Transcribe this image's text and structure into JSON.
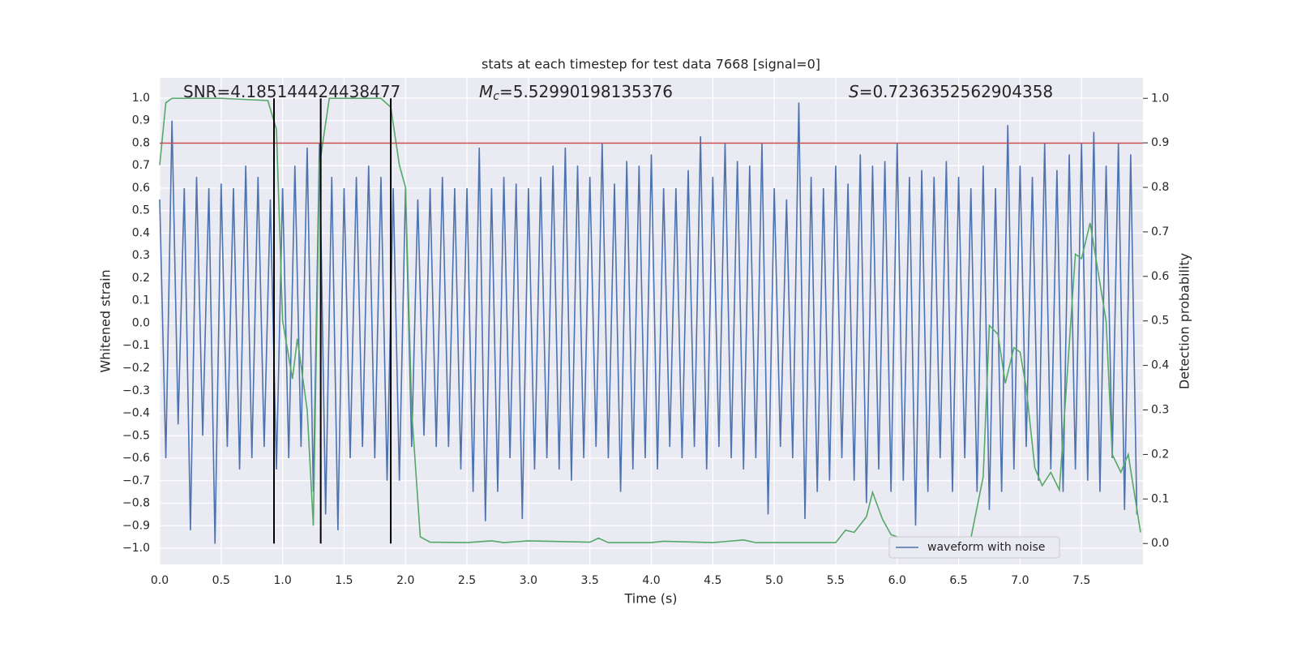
{
  "chart_data": {
    "type": "line",
    "title": "stats at each timestep for test data 7668 [signal=0]",
    "x_label": "Time (s)",
    "y_label": "Whitened strain",
    "y2_label": "Detection probability",
    "annotations": [
      {
        "text": "SNR=4.185144424438477"
      },
      {
        "symbol": "M",
        "subscript": "c",
        "text": "=5.52990198135376"
      },
      {
        "symbol": "S",
        "text": "=0.7236352562904358"
      }
    ],
    "xlim": [
      0,
      8.0
    ],
    "xticks": [
      {
        "value": 0,
        "label": "0.0"
      },
      0.5,
      {
        "value": 1,
        "label": "1.0"
      },
      1.5,
      {
        "value": 2,
        "label": "2.0"
      },
      2.5,
      {
        "value": 3,
        "label": "3.0"
      },
      3.5,
      {
        "value": 4,
        "label": "4.0"
      },
      4.5,
      {
        "value": 5,
        "label": "5.0"
      },
      5.5,
      {
        "value": 6,
        "label": "6.0"
      },
      6.5,
      {
        "value": 7,
        "label": "7.0"
      },
      7.5
    ],
    "ylim": [
      -1.072,
      1.09
    ],
    "yticks": [
      {
        "value": -1,
        "label": "−1.0"
      },
      {
        "value": -0.9,
        "label": "−0.9"
      },
      {
        "value": -0.8,
        "label": "−0.8"
      },
      {
        "value": -0.7,
        "label": "−0.7"
      },
      {
        "value": -0.6,
        "label": "−0.6"
      },
      {
        "value": -0.5,
        "label": "−0.5"
      },
      {
        "value": -0.4,
        "label": "−0.4"
      },
      {
        "value": -0.3,
        "label": "−0.3"
      },
      {
        "value": -0.2,
        "label": "−0.2"
      },
      {
        "value": -0.1,
        "label": "−0.1"
      },
      {
        "value": 0,
        "label": "0.0"
      },
      0.1,
      0.2,
      0.3,
      0.4,
      0.5,
      0.6,
      0.7,
      0.8,
      0.9,
      {
        "value": 1,
        "label": "1.0"
      }
    ],
    "y2lim": [
      -0.047,
      1.046
    ],
    "y2ticks": [
      {
        "value": 0,
        "label": "0.0"
      },
      0.1,
      0.2,
      0.3,
      0.4,
      0.5,
      0.6,
      0.7,
      0.8,
      0.9,
      {
        "value": 1,
        "label": "1.0"
      }
    ],
    "grid": true,
    "legend": "lower right",
    "hlines": [
      {
        "value": 0.8,
        "color": "#c44e52"
      }
    ],
    "vlines": {
      "color": "#000000",
      "x": [
        0.93,
        1.31,
        1.88
      ]
    },
    "series": [
      {
        "name": "waveform with noise",
        "color": "#4c72b0",
        "x": [
          0,
          0.05,
          0.1,
          0.15,
          0.2,
          0.25,
          0.3,
          0.35,
          0.4,
          0.45,
          0.5,
          0.55,
          0.6,
          0.65,
          0.7,
          0.75,
          0.8,
          0.85,
          0.9,
          0.95,
          1,
          1.05,
          1.1,
          1.15,
          1.2,
          1.25,
          1.3,
          1.35,
          1.4,
          1.45,
          1.5,
          1.55,
          1.6,
          1.65,
          1.7,
          1.75,
          1.8,
          1.85,
          1.9,
          1.95,
          2,
          2.05,
          2.1,
          2.15,
          2.2,
          2.25,
          2.3,
          2.35,
          2.4,
          2.45,
          2.5,
          2.55,
          2.6,
          2.65,
          2.7,
          2.75,
          2.8,
          2.85,
          2.9,
          2.95,
          3,
          3.05,
          3.1,
          3.15,
          3.2,
          3.25,
          3.3,
          3.35,
          3.4,
          3.45,
          3.5,
          3.55,
          3.6,
          3.65,
          3.7,
          3.75,
          3.8,
          3.85,
          3.9,
          3.95,
          4,
          4.05,
          4.1,
          4.15,
          4.2,
          4.25,
          4.3,
          4.35,
          4.4,
          4.45,
          4.5,
          4.55,
          4.6,
          4.65,
          4.7,
          4.75,
          4.8,
          4.85,
          4.9,
          4.95,
          5,
          5.05,
          5.1,
          5.15,
          5.2,
          5.25,
          5.3,
          5.35,
          5.4,
          5.45,
          5.5,
          5.55,
          5.6,
          5.65,
          5.7,
          5.75,
          5.8,
          5.85,
          5.9,
          5.95,
          6,
          6.05,
          6.1,
          6.15,
          6.2,
          6.25,
          6.3,
          6.35,
          6.4,
          6.45,
          6.5,
          6.55,
          6.6,
          6.65,
          6.7,
          6.75,
          6.8,
          6.85,
          6.9,
          6.95,
          7,
          7.05,
          7.1,
          7.15,
          7.2,
          7.25,
          7.3,
          7.35,
          7.4,
          7.45,
          7.5,
          7.55,
          7.6,
          7.65,
          7.7,
          7.75,
          7.8,
          7.85,
          7.9,
          7.95
        ],
        "values": [
          0.55,
          -0.6,
          0.9,
          -0.45,
          0.6,
          -0.92,
          0.65,
          -0.5,
          0.6,
          -0.98,
          0.62,
          -0.55,
          0.6,
          -0.65,
          0.7,
          -0.6,
          0.65,
          -0.55,
          0.55,
          -0.65,
          0.6,
          -0.6,
          0.7,
          -0.55,
          0.78,
          -0.75,
          0.8,
          -0.85,
          0.65,
          -0.92,
          0.6,
          -0.6,
          0.65,
          -0.55,
          0.7,
          -0.6,
          0.65,
          -0.7,
          0.6,
          -0.7,
          0.6,
          -0.55,
          0.55,
          -0.5,
          0.6,
          -0.55,
          0.65,
          -0.55,
          0.6,
          -0.65,
          0.6,
          -0.75,
          0.78,
          -0.88,
          0.6,
          -0.75,
          0.65,
          -0.6,
          0.62,
          -0.87,
          0.6,
          -0.65,
          0.65,
          -0.6,
          0.7,
          -0.65,
          0.78,
          -0.7,
          0.7,
          -0.6,
          0.65,
          -0.55,
          0.8,
          -0.6,
          0.62,
          -0.75,
          0.72,
          -0.65,
          0.7,
          -0.6,
          0.75,
          -0.65,
          0.6,
          -0.55,
          0.6,
          -0.6,
          0.68,
          -0.55,
          0.83,
          -0.65,
          0.65,
          -0.55,
          0.8,
          -0.6,
          0.72,
          -0.65,
          0.7,
          -0.6,
          0.8,
          -0.85,
          0.6,
          -0.55,
          0.55,
          -0.6,
          0.98,
          -0.87,
          0.65,
          -0.75,
          0.6,
          -0.7,
          0.7,
          -0.6,
          0.62,
          -0.7,
          0.75,
          -0.8,
          0.7,
          -0.65,
          0.72,
          -0.75,
          0.8,
          -0.7,
          0.65,
          -0.9,
          0.68,
          -0.75,
          0.65,
          -0.6,
          0.72,
          -0.75,
          0.65,
          -0.6,
          0.6,
          -0.75,
          0.7,
          -0.83,
          0.6,
          -0.75,
          0.88,
          -0.65,
          0.7,
          -0.55,
          0.65,
          -0.7,
          0.8,
          -0.65,
          0.68,
          -0.75,
          0.75,
          -0.65,
          0.8,
          -0.7,
          0.85,
          -0.75,
          0.7,
          -0.6,
          0.8,
          -0.83,
          0.75,
          -0.85
        ]
      },
      {
        "color": "#55a868",
        "axis": "y2",
        "x": [
          0,
          0.05,
          0.1,
          0.5,
          0.88,
          0.95,
          1.0,
          1.08,
          1.12,
          1.2,
          1.25,
          1.3,
          1.38,
          1.8,
          1.88,
          1.95,
          2.0,
          2.05,
          2.12,
          2.2,
          2.5,
          2.7,
          2.8,
          3.0,
          3.5,
          3.57,
          3.65,
          4.0,
          4.1,
          4.5,
          4.75,
          4.85,
          5.5,
          5.58,
          5.65,
          5.75,
          5.8,
          5.88,
          5.95,
          6.1,
          6.5,
          6.6,
          6.7,
          6.75,
          6.82,
          6.88,
          6.95,
          7.0,
          7.05,
          7.12,
          7.18,
          7.25,
          7.32,
          7.45,
          7.5,
          7.57,
          7.7,
          7.75,
          7.82,
          7.88,
          7.98
        ],
        "values": [
          0.85,
          0.99,
          1.0,
          1.0,
          0.995,
          0.93,
          0.5,
          0.37,
          0.46,
          0.3,
          0.04,
          0.85,
          1.0,
          1.0,
          0.98,
          0.85,
          0.8,
          0.3,
          0.015,
          0.003,
          0.002,
          0.006,
          0.002,
          0.006,
          0.003,
          0.012,
          0.002,
          0.002,
          0.005,
          0.002,
          0.008,
          0.002,
          0.002,
          0.03,
          0.025,
          0.06,
          0.115,
          0.055,
          0.02,
          0.005,
          0.004,
          0.012,
          0.15,
          0.49,
          0.47,
          0.36,
          0.44,
          0.43,
          0.35,
          0.17,
          0.13,
          0.16,
          0.12,
          0.65,
          0.64,
          0.72,
          0.5,
          0.2,
          0.16,
          0.2,
          0.025
        ]
      }
    ]
  }
}
